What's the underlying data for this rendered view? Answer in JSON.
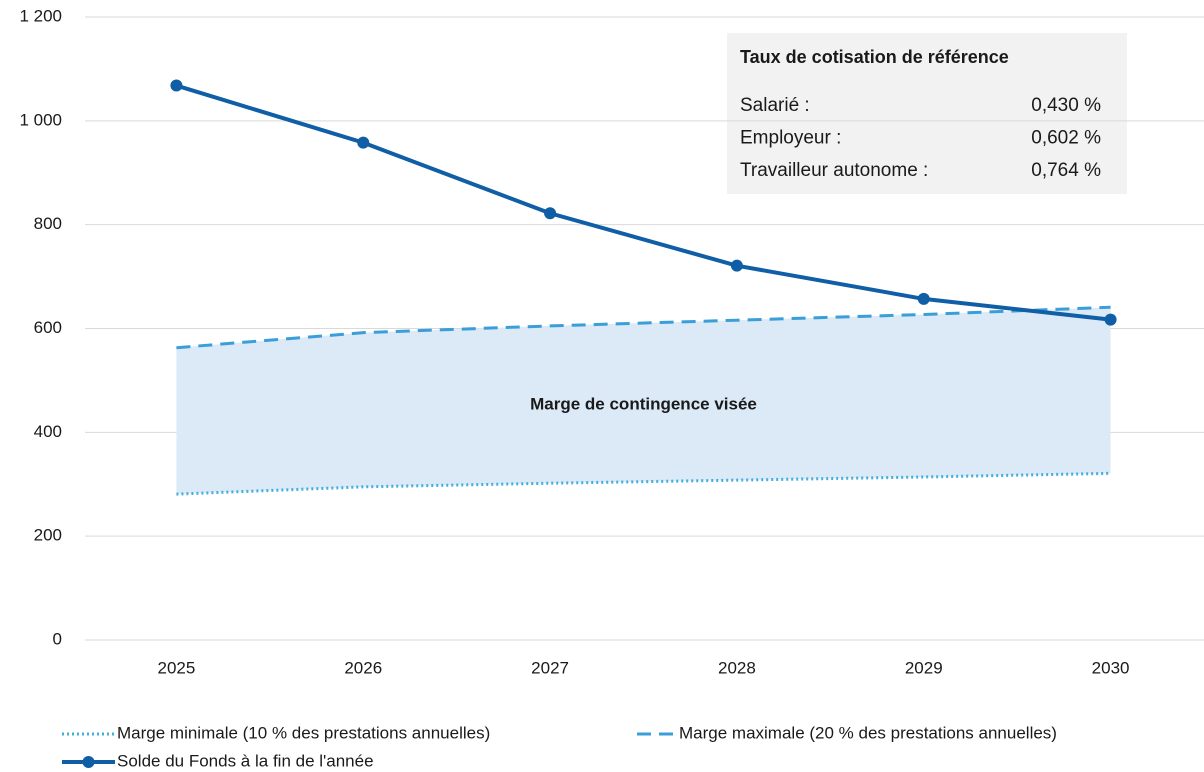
{
  "chart_data": {
    "type": "line",
    "categories": [
      "2025",
      "2026",
      "2027",
      "2028",
      "2029",
      "2030"
    ],
    "series": [
      {
        "name": "Marge minimale (10 % des prestations annuelles)",
        "color": "#41afe0",
        "style": "dotted",
        "values": [
          281,
          295,
          302,
          308,
          314,
          321
        ]
      },
      {
        "name": "Marge maximale (20 % des prestations annuelles)",
        "color": "#3a9fd8",
        "style": "dashed",
        "values": [
          563,
          592,
          605,
          616,
          627,
          641
        ]
      },
      {
        "name": "Solde du Fonds à la fin de l'année",
        "color": "#0f5ea6",
        "style": "solid",
        "marker": "circle",
        "values": [
          1068,
          958,
          822,
          721,
          657,
          617
        ]
      }
    ],
    "band": {
      "label": "Marge de contingence visée",
      "color": "#dce9f6"
    },
    "info_box": {
      "title": "Taux de cotisation de référence",
      "rows": [
        [
          "Salarié :",
          "0,430 %"
        ],
        [
          "Employeur :",
          "0,602 %"
        ],
        [
          "Travailleur autonome :",
          "0,764 %"
        ]
      ]
    },
    "ylim": [
      0,
      1200
    ],
    "yticks": [
      0,
      200,
      400,
      600,
      800,
      {
        "value": 1000,
        "label": "1 000"
      },
      {
        "value": 1200,
        "label": "1 200"
      }
    ],
    "grid": true,
    "legend": "bottom"
  }
}
